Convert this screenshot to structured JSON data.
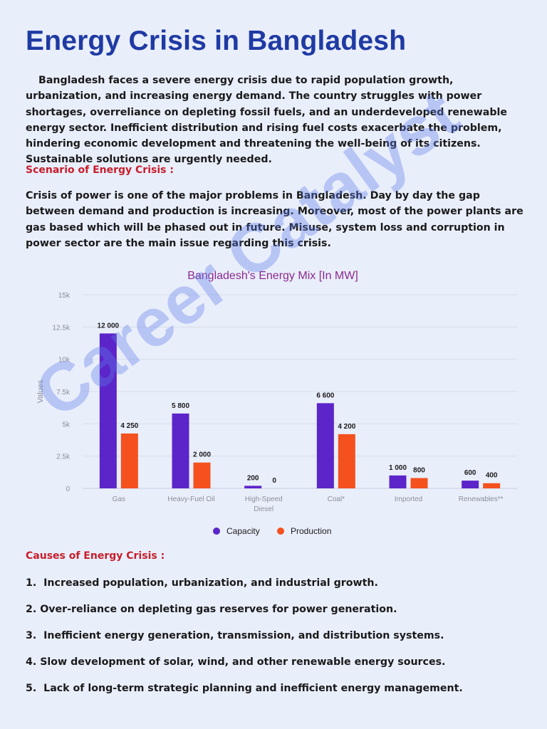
{
  "title": "Energy Crisis in Bangladesh",
  "intro": "Bangladesh faces a severe energy crisis due to rapid population growth, urbanization, and increasing energy demand. The country struggles with power shortages, overreliance on depleting fossil fuels, and an underdeveloped renewable energy sector. Inefficient distribution and rising fuel costs exacerbate the problem, hindering economic development and threatening the well-being of its citizens. Sustainable solutions are urgently needed.",
  "scenario_heading": "Scenario of Energy Crisis :",
  "scenario_text": "Crisis of power is one of the major problems in Bangladesh. Day by day the gap between demand and production is increasing. Moreover, most of the power plants are gas based which will be phased out in future. Misuse, system loss and corruption in power sector are the main issue regarding this crisis.",
  "causes_heading": "Causes of Energy Crisis :",
  "causes": [
    {
      "num": "1.",
      "text": "Increased population, urbanization, and industrial growth."
    },
    {
      "num": "2.",
      "text": "Over-reliance on depleting gas reserves for power generation."
    },
    {
      "num": "3.",
      "text": "Inefficient energy generation, transmission, and distribution systems."
    },
    {
      "num": "4.",
      "text": "Slow development of solar, wind, and other renewable energy sources."
    },
    {
      "num": "5.",
      "text": "Lack of long-term strategic planning and inefficient energy management."
    }
  ],
  "watermark": "Career Catalyst",
  "chart_data": {
    "type": "bar",
    "title": "Bangladesh's Energy Mix [In MW]",
    "xlabel": "",
    "ylabel": "Values",
    "ylim": [
      0,
      15000
    ],
    "yticks": [
      "0",
      "2.5k",
      "5k",
      "7.5k",
      "10k",
      "12.5k",
      "15k"
    ],
    "ytick_values": [
      0,
      2500,
      5000,
      7500,
      10000,
      12500,
      15000
    ],
    "categories": [
      "Gas",
      "Heavy-Fuel Oil",
      "High-Speed Diesel",
      "Coal*",
      "Imported",
      "Renewables**"
    ],
    "category_lines": [
      [
        "Gas"
      ],
      [
        "Heavy-Fuel Oil"
      ],
      [
        "High-Speed",
        "Diesel"
      ],
      [
        "Coal*"
      ],
      [
        "Imported"
      ],
      [
        "Renewables**"
      ]
    ],
    "series": [
      {
        "name": "Capacity",
        "color": "#5b25c9",
        "values": [
          12000,
          5800,
          200,
          6600,
          1000,
          600
        ],
        "labels": [
          "12 000",
          "5 800",
          "200",
          "6 600",
          "1 000",
          "600"
        ]
      },
      {
        "name": "Production",
        "color": "#f4511e",
        "values": [
          4250,
          2000,
          0,
          4200,
          800,
          400
        ],
        "labels": [
          "4 250",
          "2 000",
          "0",
          "4 200",
          "800",
          "400"
        ]
      }
    ],
    "grid": true,
    "legend": "bottom-center",
    "title_color": "#8a2a8f"
  }
}
